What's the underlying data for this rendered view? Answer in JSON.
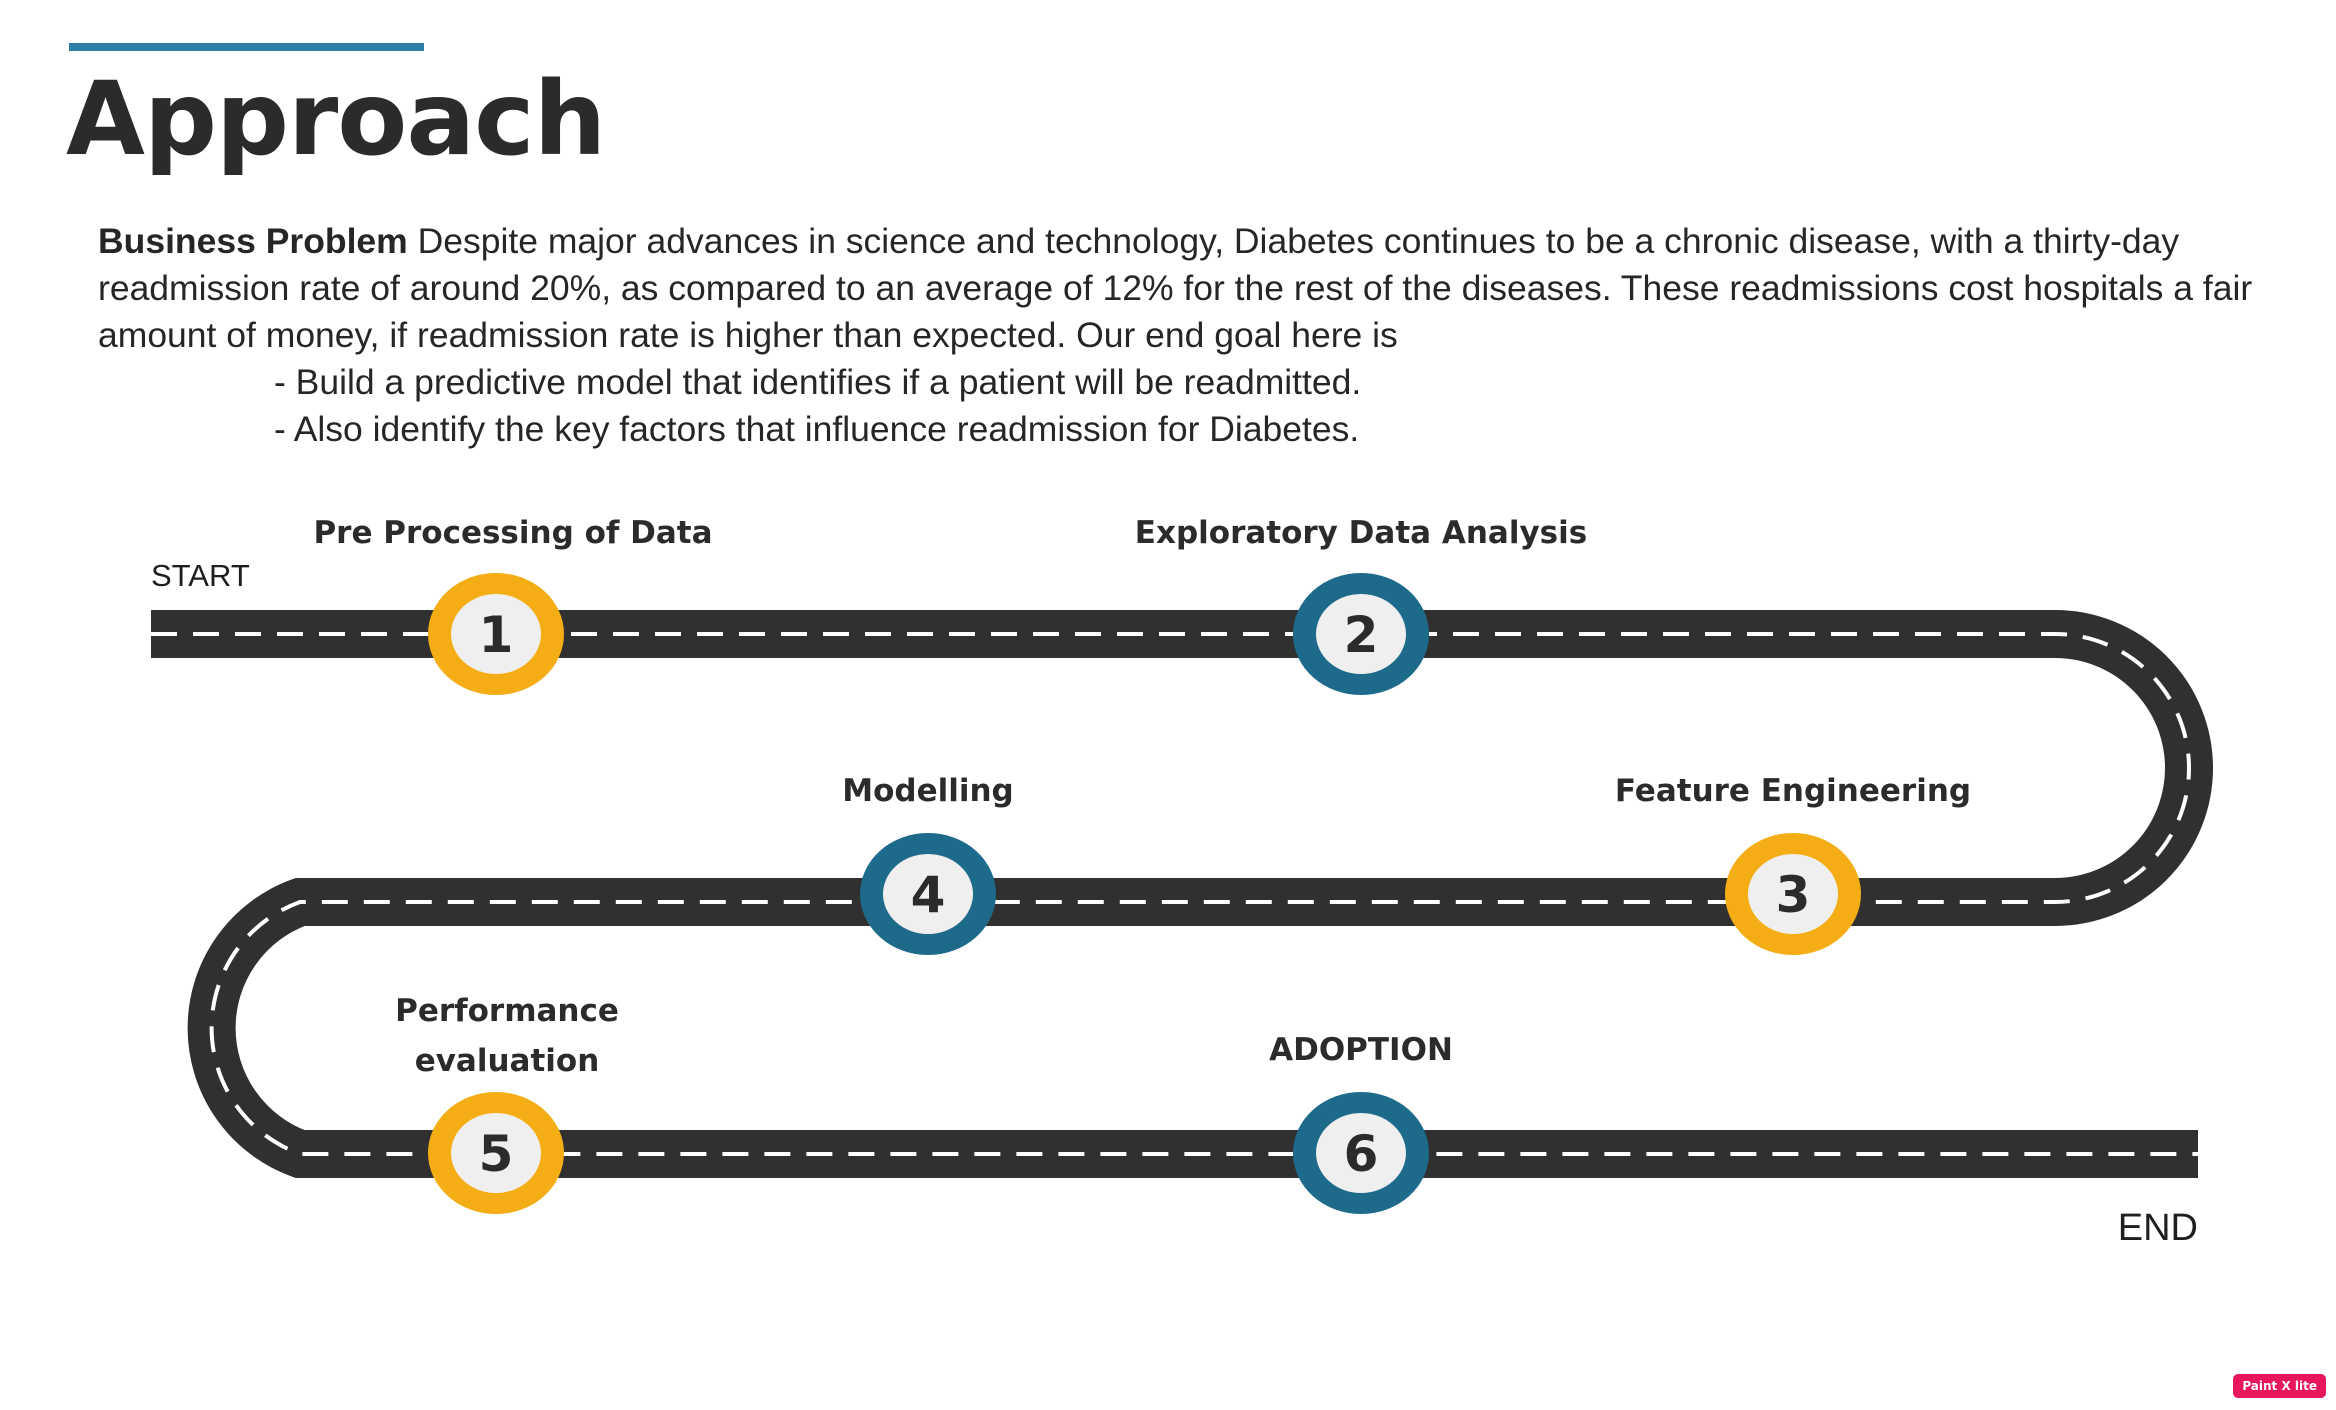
{
  "slide": {
    "title": "Approach",
    "accent_color": "#2e7fa8"
  },
  "business_problem": {
    "lead": "Business Problem",
    "text": " Despite major advances in science and technology, Diabetes continues to be a chronic disease, with a thirty-day readmission rate of around 20%, as compared to an average of 12% for the rest of the diseases. These readmissions cost hospitals a fair amount of money, if readmission rate is higher than expected. Our end goal here is",
    "goals": [
      "- Build a predictive model that identifies if a patient will be readmitted.",
      "- Also identify the key factors that influence readmission for Diabetes."
    ]
  },
  "roadmap": {
    "start_label": "START",
    "end_label": "END",
    "road_color": "#303030",
    "dash_color": "#ffffff",
    "colors": {
      "yellow": "#f5ad15",
      "blue": "#1d6a8b",
      "inner": "#efefef"
    },
    "stages": [
      {
        "number": "1",
        "label_lines": [
          "Pre Processing of Data"
        ],
        "color": "yellow"
      },
      {
        "number": "2",
        "label_lines": [
          "Exploratory Data Analysis"
        ],
        "color": "blue"
      },
      {
        "number": "3",
        "label_lines": [
          "Feature Engineering"
        ],
        "color": "yellow"
      },
      {
        "number": "4",
        "label_lines": [
          "Modelling"
        ],
        "color": "blue"
      },
      {
        "number": "5",
        "label_lines": [
          "Performance",
          "evaluation"
        ],
        "color": "yellow"
      },
      {
        "number": "6",
        "label_lines": [
          "ADOPTION"
        ],
        "color": "blue"
      }
    ]
  },
  "watermark": "Paint X lite"
}
